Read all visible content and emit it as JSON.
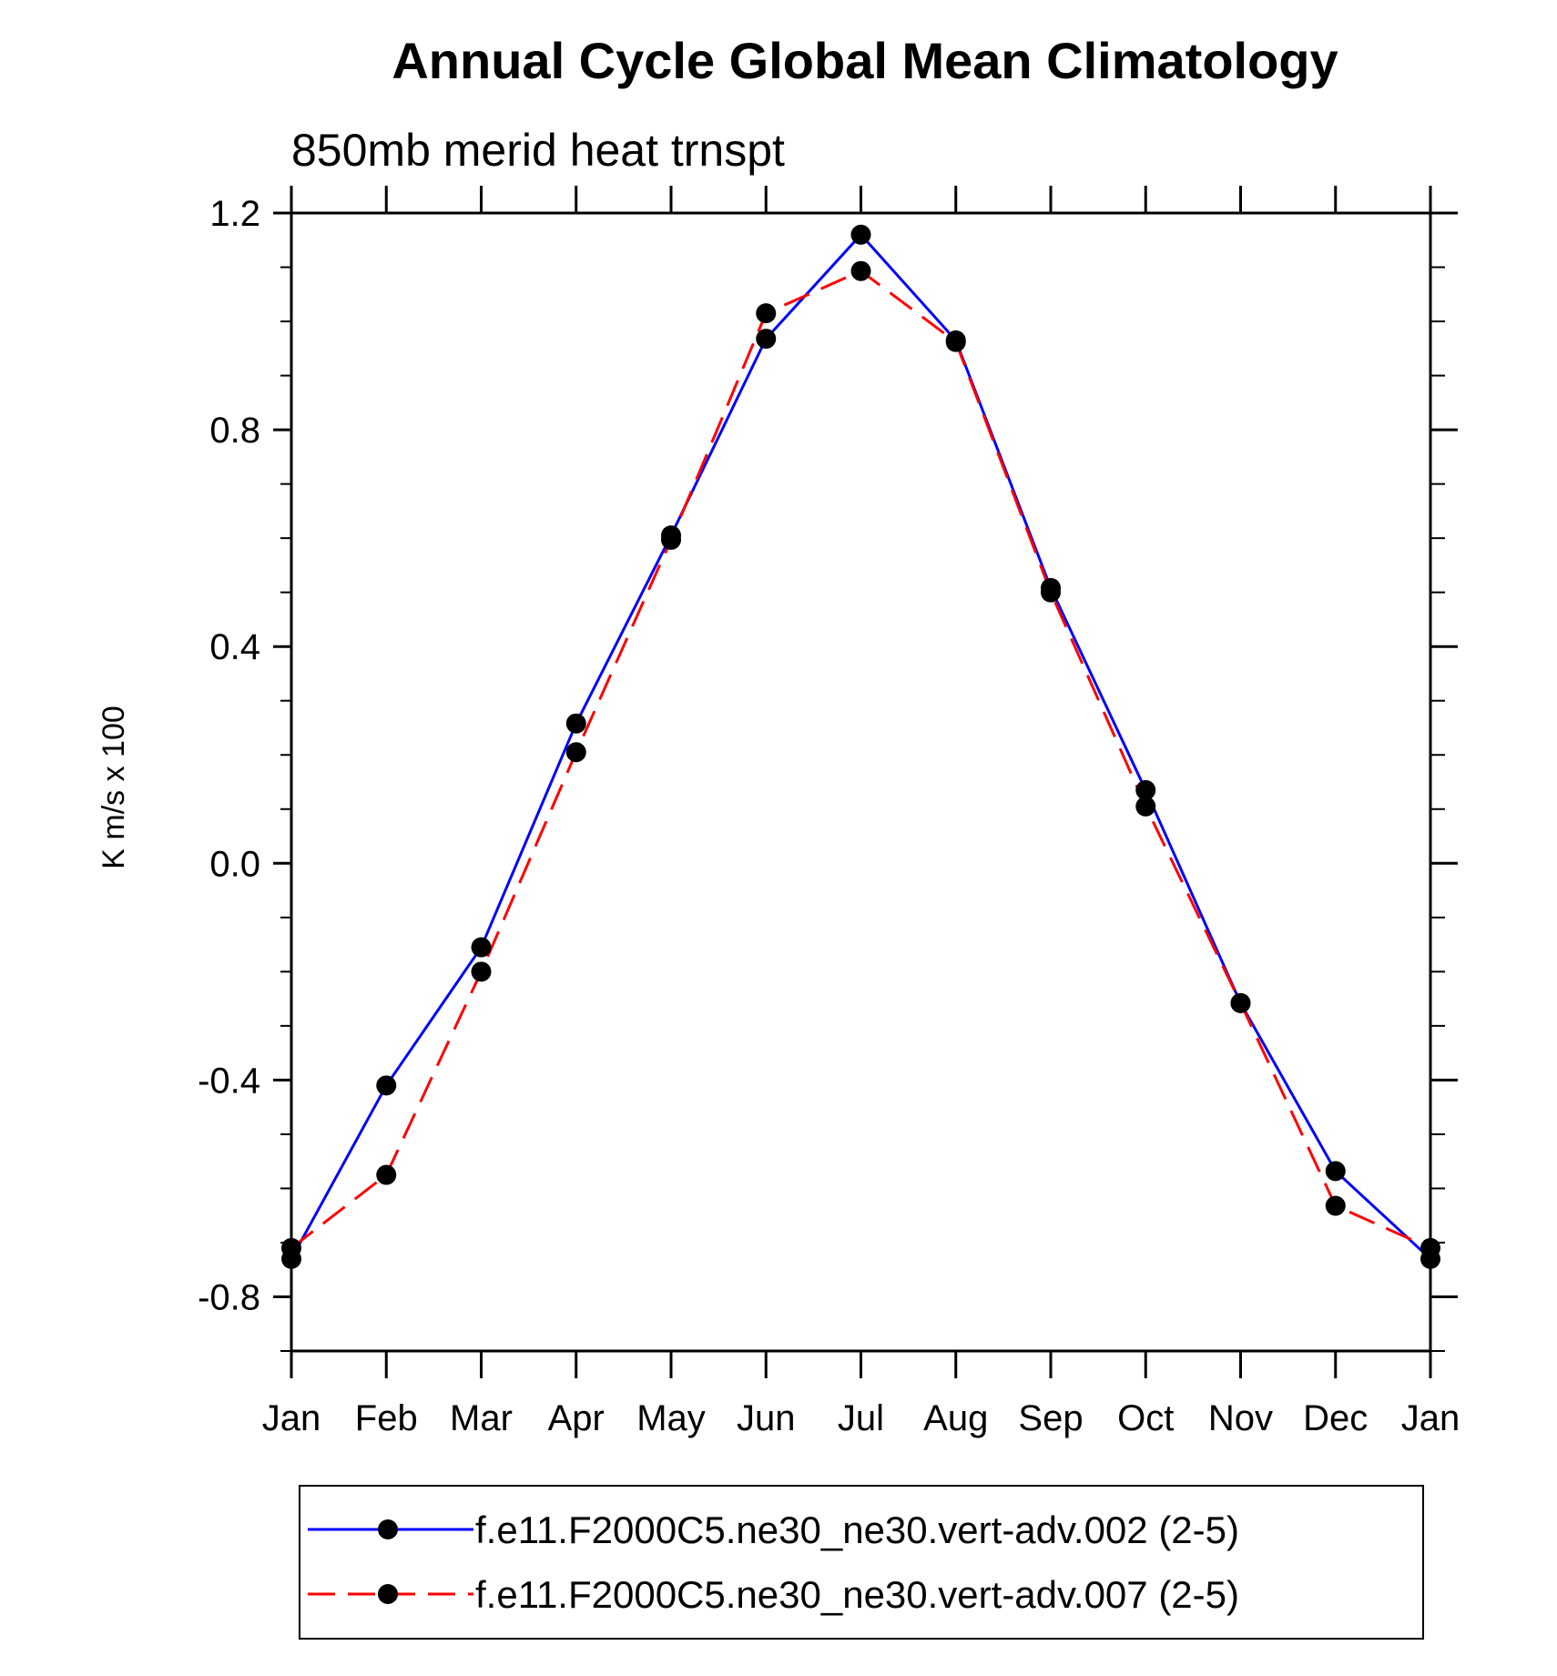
{
  "chart_data": {
    "type": "line",
    "title": "Annual Cycle Global Mean Climatology",
    "subtitle": "850mb merid heat trnspt",
    "ylabel": "K m/s x 100",
    "xlabel": "",
    "categories": [
      "Jan",
      "Feb",
      "Mar",
      "Apr",
      "May",
      "Jun",
      "Jul",
      "Aug",
      "Sep",
      "Oct",
      "Nov",
      "Dec",
      "Jan"
    ],
    "ylim": [
      -0.9,
      1.2
    ],
    "yticks": [
      "1.2",
      "0.8",
      "0.4",
      "0.0",
      "-0.4",
      "-0.8"
    ],
    "ytick_values": [
      1.2,
      0.8,
      0.4,
      0.0,
      -0.4,
      -0.8
    ],
    "yminor_step": 0.1,
    "series": [
      {
        "name": "f.e11.F2000C5.ne30_ne30.vert-adv.002 (2-5)",
        "color": "#0000ff",
        "dash": "solid",
        "values": [
          -0.73,
          -0.41,
          -0.155,
          0.258,
          0.605,
          0.968,
          1.16,
          0.965,
          0.508,
          0.135,
          -0.258,
          -0.568,
          -0.73
        ]
      },
      {
        "name": "f.e11.F2000C5.ne30_ne30.vert-adv.007 (2-5)",
        "color": "#ff0000",
        "dash": "dashed",
        "values": [
          -0.71,
          -0.575,
          -0.2,
          0.205,
          0.597,
          1.015,
          1.093,
          0.962,
          0.5,
          0.105,
          -0.258,
          -0.632,
          -0.71
        ]
      }
    ],
    "marker": "filled-circle",
    "marker_color": "#000000",
    "grid": false,
    "legend_position": "bottom-center"
  }
}
